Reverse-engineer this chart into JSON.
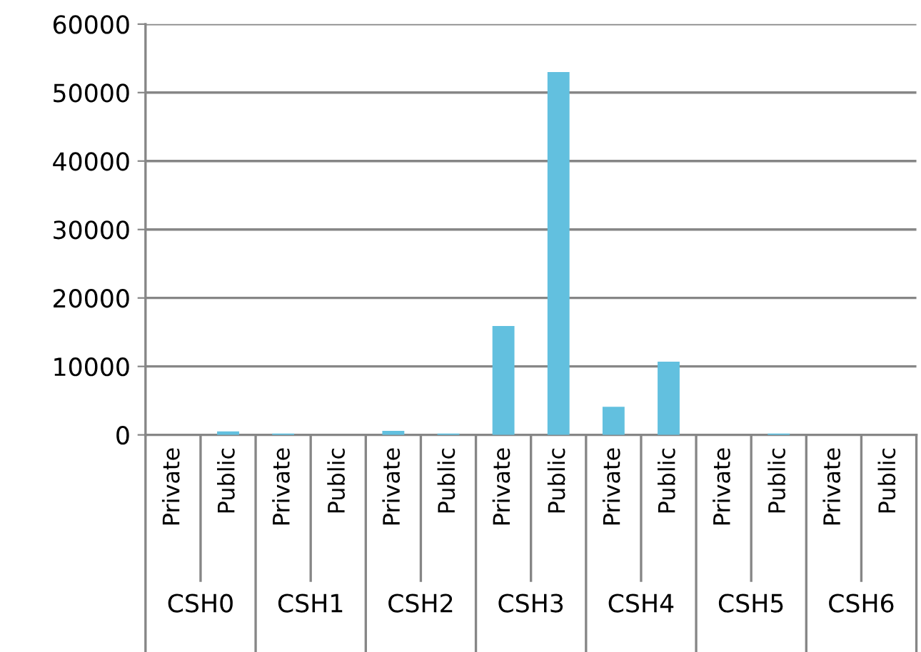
{
  "chart_data": {
    "type": "bar",
    "categories": [
      "Private",
      "Public",
      "Private",
      "Public",
      "Private",
      "Public",
      "Private",
      "Public",
      "Private",
      "Public",
      "Private",
      "Public",
      "Private",
      "Public"
    ],
    "values": [
      0,
      500,
      200,
      0,
      600,
      200,
      15900,
      53000,
      4100,
      10700,
      0,
      200,
      null,
      0
    ],
    "color": "#62c0df",
    "annotations": [
      "CSH0",
      "CSH1",
      "CSH2",
      "CSH3",
      "CSH4",
      "CSH5",
      "CSH6"
    ],
    "ylim": [
      0,
      60000
    ],
    "yticks": [
      0,
      10000,
      20000,
      30000,
      40000,
      50000,
      60000
    ],
    "grid": "y"
  }
}
